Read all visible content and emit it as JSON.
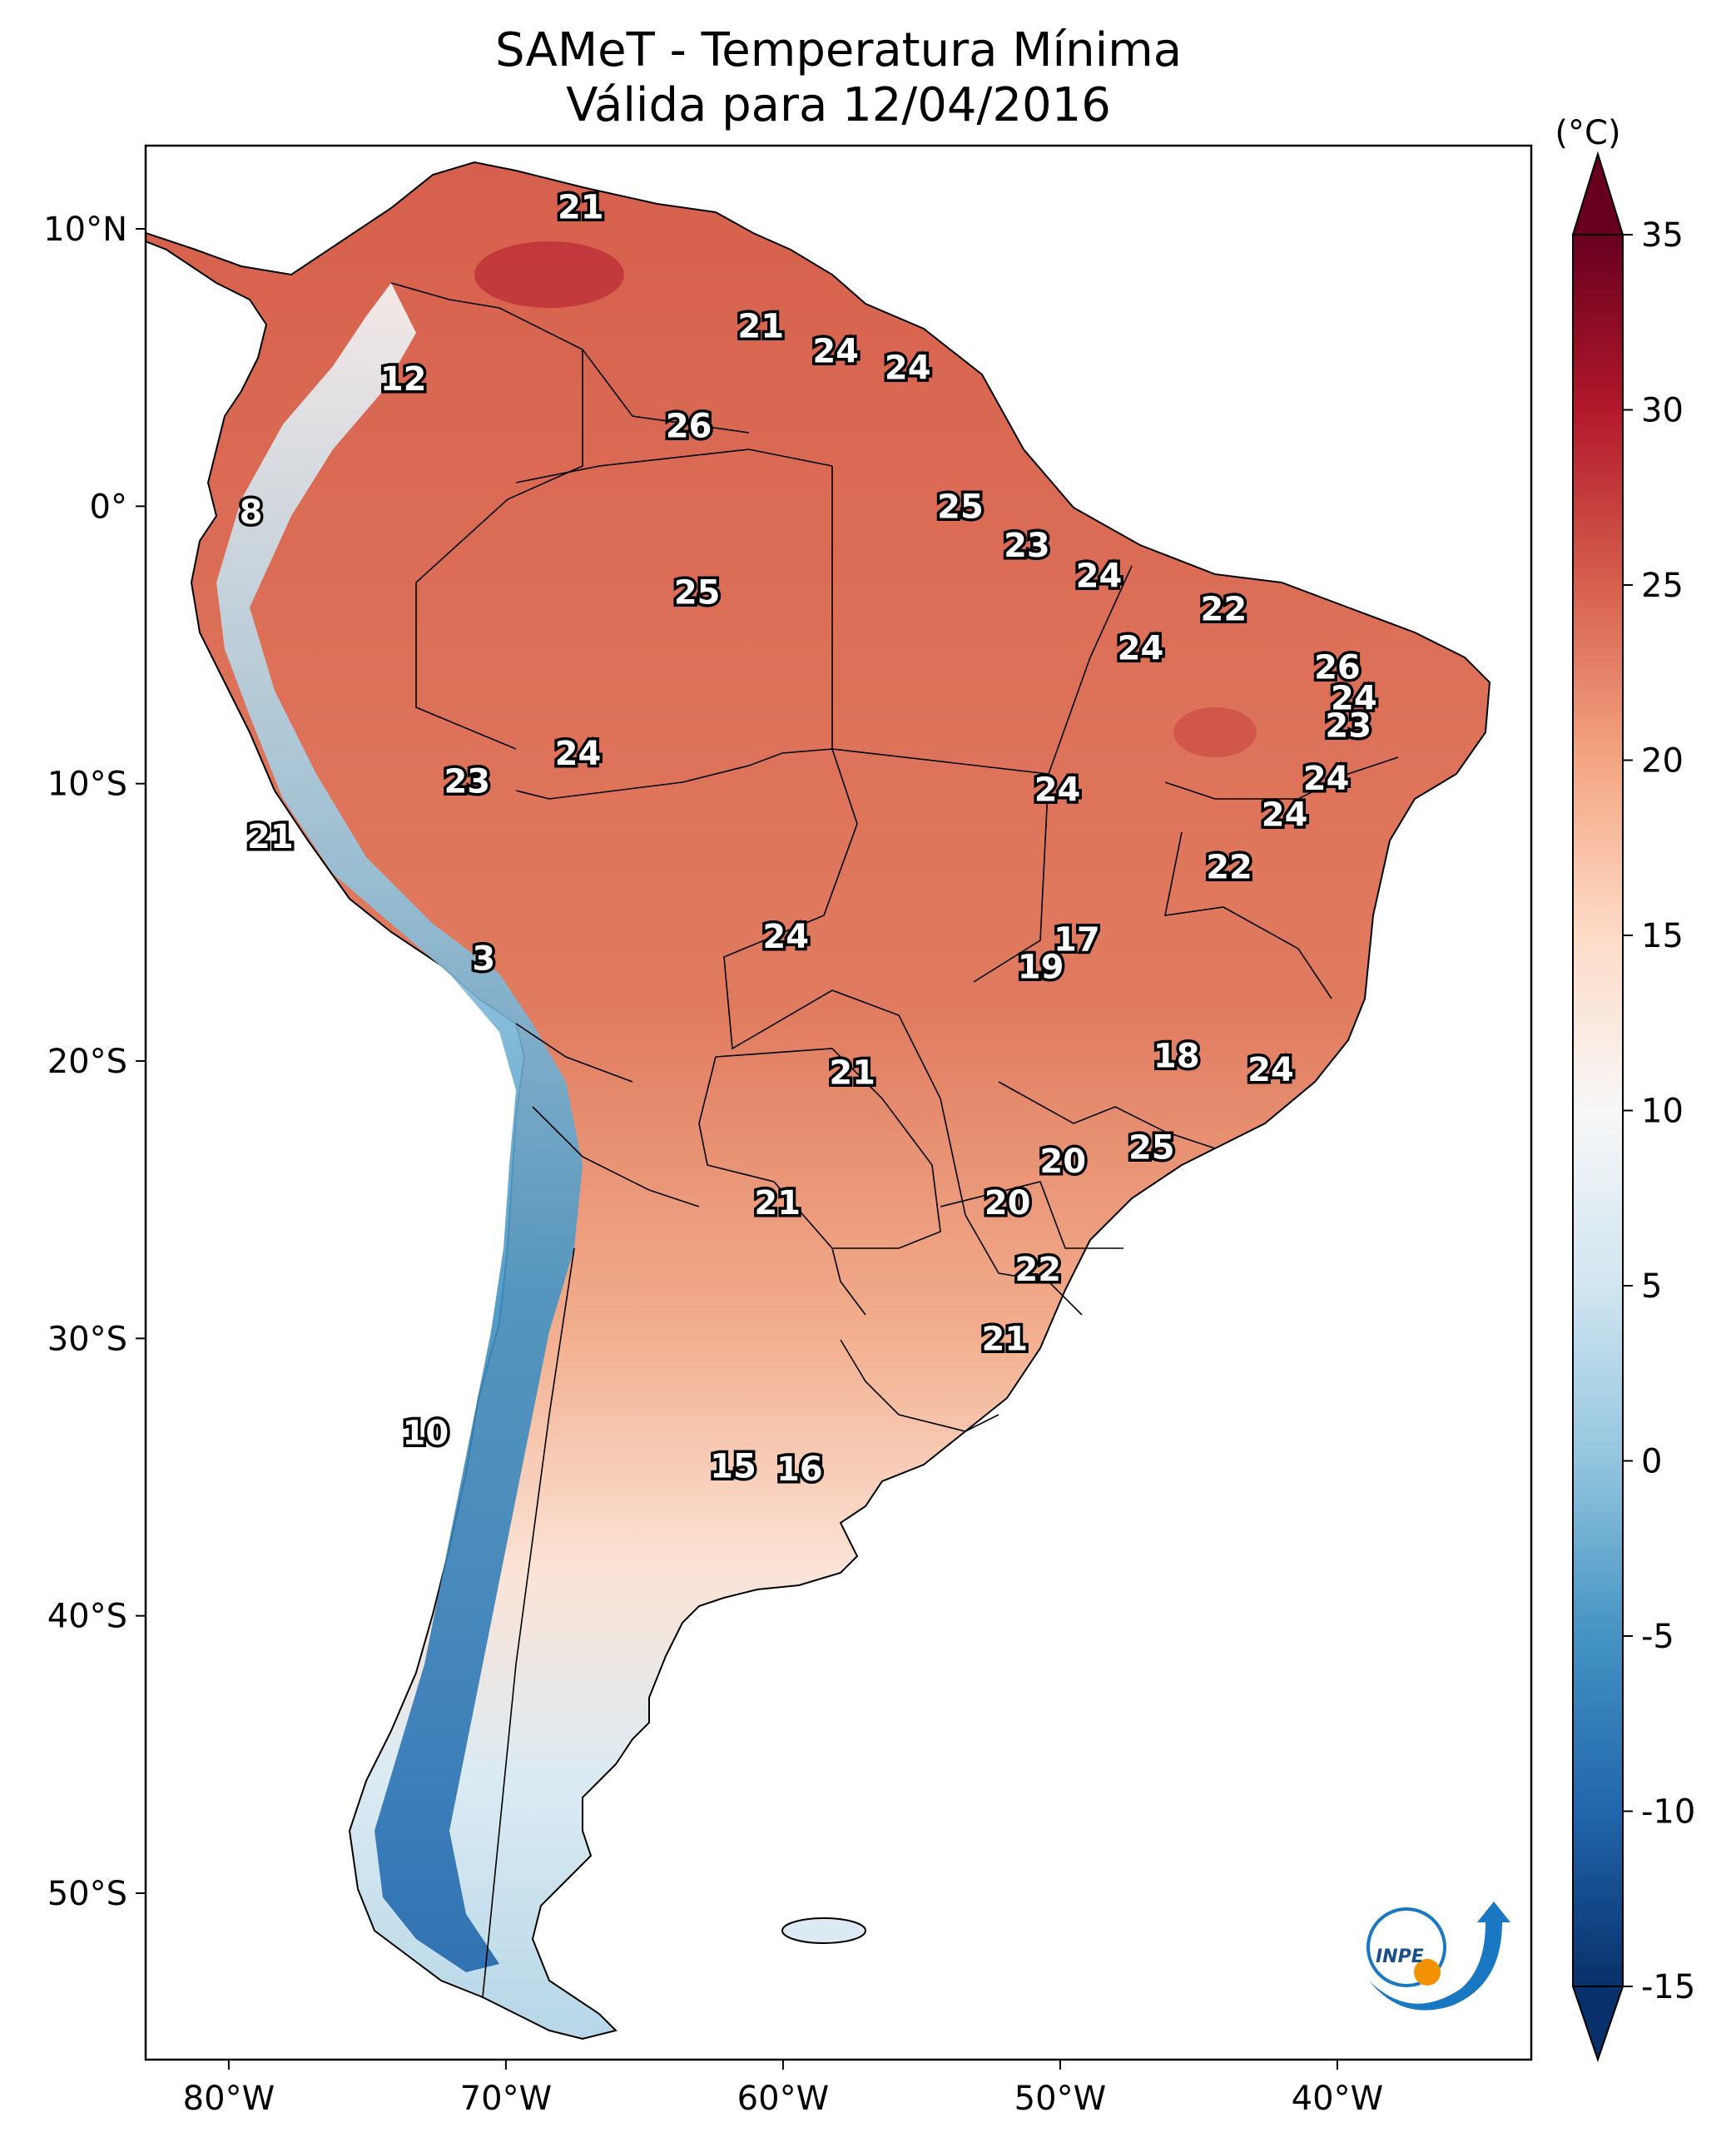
{
  "title": {
    "line1": "SAMeT - Temperatura Mínima",
    "line2": "Válida para 12/04/2016"
  },
  "map": {
    "lon_range": [
      -83,
      -33
    ],
    "lat_range": [
      -56,
      13
    ],
    "lon_ticks": [
      {
        "value": -80,
        "label": "80°W"
      },
      {
        "value": -70,
        "label": "70°W"
      },
      {
        "value": -60,
        "label": "60°W"
      },
      {
        "value": -50,
        "label": "50°W"
      },
      {
        "value": -40,
        "label": "40°W"
      }
    ],
    "lat_ticks": [
      {
        "value": 10,
        "label": "10°N"
      },
      {
        "value": 0,
        "label": "0°"
      },
      {
        "value": -10,
        "label": "10°S"
      },
      {
        "value": -20,
        "label": "20°S"
      },
      {
        "value": -30,
        "label": "30°S"
      },
      {
        "value": -40,
        "label": "40°S"
      },
      {
        "value": -50,
        "label": "50°S"
      }
    ],
    "station_values": [
      {
        "lon": -67.3,
        "lat": 10.8,
        "value": "21"
      },
      {
        "lon": -60.8,
        "lat": 6.5,
        "value": "21"
      },
      {
        "lon": -58.1,
        "lat": 5.6,
        "value": "24"
      },
      {
        "lon": -55.5,
        "lat": 5.0,
        "value": "24"
      },
      {
        "lon": -73.7,
        "lat": 4.6,
        "value": "12"
      },
      {
        "lon": -63.4,
        "lat": 2.9,
        "value": "26"
      },
      {
        "lon": -53.6,
        "lat": 0.0,
        "value": "25"
      },
      {
        "lon": -79.2,
        "lat": -0.2,
        "value": "8"
      },
      {
        "lon": -51.2,
        "lat": -1.4,
        "value": "23"
      },
      {
        "lon": -48.6,
        "lat": -2.5,
        "value": "24"
      },
      {
        "lon": -63.1,
        "lat": -3.1,
        "value": "25"
      },
      {
        "lon": -44.1,
        "lat": -3.7,
        "value": "22"
      },
      {
        "lon": -47.1,
        "lat": -5.1,
        "value": "24"
      },
      {
        "lon": -40.0,
        "lat": -5.8,
        "value": "26"
      },
      {
        "lon": -39.4,
        "lat": -6.9,
        "value": "24"
      },
      {
        "lon": -39.6,
        "lat": -7.9,
        "value": "23"
      },
      {
        "lon": -67.4,
        "lat": -8.9,
        "value": "24"
      },
      {
        "lon": -71.4,
        "lat": -9.9,
        "value": "23"
      },
      {
        "lon": -40.4,
        "lat": -9.8,
        "value": "24"
      },
      {
        "lon": -50.1,
        "lat": -10.2,
        "value": "24"
      },
      {
        "lon": -41.9,
        "lat": -11.1,
        "value": "24"
      },
      {
        "lon": -78.5,
        "lat": -11.9,
        "value": "21"
      },
      {
        "lon": -43.9,
        "lat": -13.0,
        "value": "22"
      },
      {
        "lon": -49.4,
        "lat": -15.6,
        "value": "17"
      },
      {
        "lon": -59.9,
        "lat": -15.5,
        "value": "24"
      },
      {
        "lon": -70.8,
        "lat": -16.3,
        "value": "3"
      },
      {
        "lon": -50.7,
        "lat": -16.6,
        "value": "19"
      },
      {
        "lon": -45.8,
        "lat": -19.8,
        "value": "18"
      },
      {
        "lon": -42.4,
        "lat": -20.3,
        "value": "24"
      },
      {
        "lon": -57.5,
        "lat": -20.4,
        "value": "21"
      },
      {
        "lon": -46.7,
        "lat": -23.1,
        "value": "25"
      },
      {
        "lon": -49.9,
        "lat": -23.6,
        "value": "20"
      },
      {
        "lon": -60.2,
        "lat": -25.1,
        "value": "21"
      },
      {
        "lon": -51.9,
        "lat": -25.1,
        "value": "20"
      },
      {
        "lon": -50.8,
        "lat": -27.5,
        "value": "22"
      },
      {
        "lon": -52.0,
        "lat": -30.0,
        "value": "21"
      },
      {
        "lon": -72.9,
        "lat": -33.4,
        "value": "10"
      },
      {
        "lon": -61.8,
        "lat": -34.6,
        "value": "15"
      },
      {
        "lon": -59.4,
        "lat": -34.7,
        "value": "16"
      }
    ]
  },
  "colorbar": {
    "unit": "(°C)",
    "min": -15,
    "max": 35,
    "ticks": [
      "35",
      "30",
      "25",
      "20",
      "15",
      "10",
      "5",
      "0",
      "-5",
      "-10",
      "-15"
    ],
    "colors": [
      "#08306b",
      "#2166ac",
      "#4393c3",
      "#92c5de",
      "#d1e5f0",
      "#f7f7f7",
      "#fddbc7",
      "#f4a582",
      "#d6604d",
      "#b2182b",
      "#67001f"
    ]
  },
  "logo": {
    "text": "INPE",
    "colors": {
      "blue": "#1a78c2",
      "orange": "#f39200"
    }
  }
}
